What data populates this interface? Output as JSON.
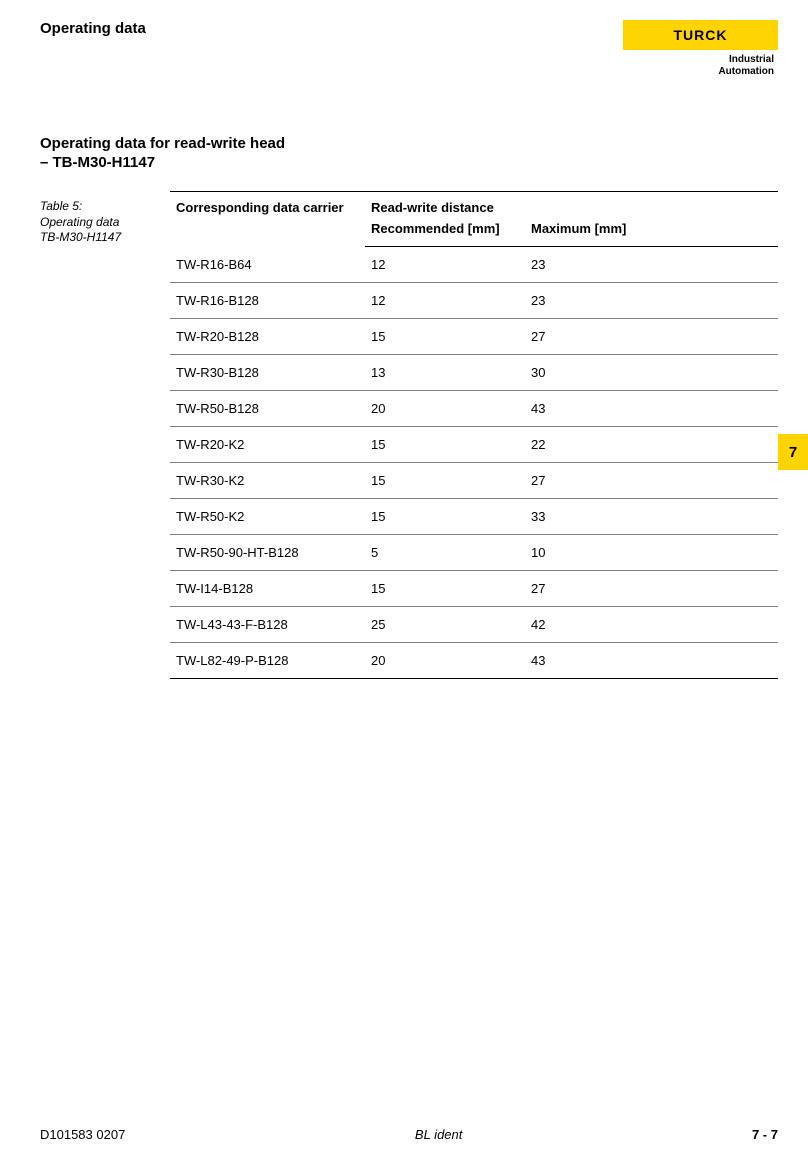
{
  "header": {
    "title": "Operating data",
    "logo_text": "TURCK",
    "logo_sub_line1": "Industrial",
    "logo_sub_line2": "Automation",
    "logo_bg_color": "#ffd400"
  },
  "section": {
    "title": "Operating data for read-write head",
    "subtitle": "– TB-M30-H1147"
  },
  "table_caption": {
    "line1": "Table 5:",
    "line2": "Operating data",
    "line3": "TB-M30-H1147"
  },
  "table": {
    "type": "table",
    "columns": {
      "carrier_header": "Corresponding data carrier",
      "spanning_header": "Read-write distance",
      "recommended_header": "Recommended [mm]",
      "maximum_header": "Maximum [mm]"
    },
    "rows": [
      {
        "carrier": "TW-R16-B64",
        "recommended": "12",
        "maximum": "23"
      },
      {
        "carrier": "TW-R16-B128",
        "recommended": "12",
        "maximum": "23"
      },
      {
        "carrier": "TW-R20-B128",
        "recommended": "15",
        "maximum": "27"
      },
      {
        "carrier": "TW-R30-B128",
        "recommended": "13",
        "maximum": "30"
      },
      {
        "carrier": "TW-R50-B128",
        "recommended": "20",
        "maximum": "43"
      },
      {
        "carrier": "TW-R20-K2",
        "recommended": "15",
        "maximum": "22"
      },
      {
        "carrier": "TW-R30-K2",
        "recommended": "15",
        "maximum": "27"
      },
      {
        "carrier": "TW-R50-K2",
        "recommended": "15",
        "maximum": "33"
      },
      {
        "carrier": "TW-R50-90-HT-B128",
        "recommended": "5",
        "maximum": "10"
      },
      {
        "carrier": "TW-I14-B128",
        "recommended": "15",
        "maximum": "27"
      },
      {
        "carrier": "TW-L43-43-F-B128",
        "recommended": "25",
        "maximum": "42"
      },
      {
        "carrier": "TW-L82-49-P-B128",
        "recommended": "20",
        "maximum": "43"
      }
    ],
    "border_color": "#000000",
    "row_border_color": "#808080",
    "font_size_header": 13,
    "font_size_cell": 13
  },
  "side_tab": {
    "label": "7",
    "bg_color": "#ffd400"
  },
  "footer": {
    "left": "D101583  0207",
    "center": "BL ident",
    "right": "7 - 7"
  }
}
